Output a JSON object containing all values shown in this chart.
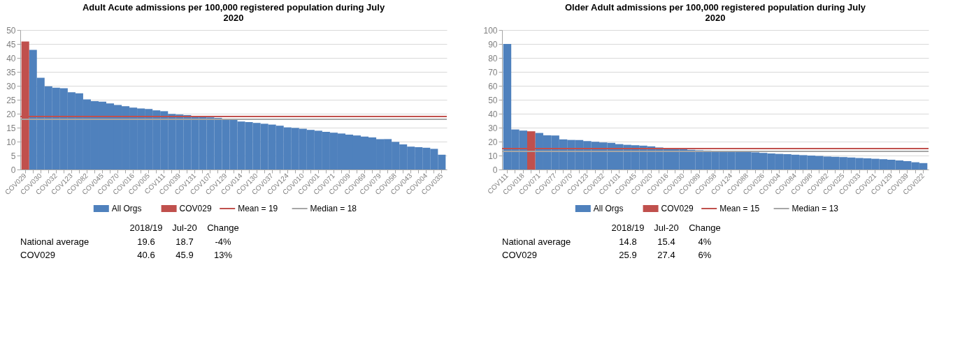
{
  "chart_data": [
    {
      "type": "bar",
      "title": "Adult Acute admissions per 100,000 registered population during July 2020",
      "categories": [
        "COV029",
        null,
        "COV030",
        null,
        "COV032",
        null,
        "COV123",
        null,
        "COV082",
        null,
        "COV045",
        null,
        "COV070",
        null,
        "COV016",
        null,
        "COV005",
        null,
        "COV111",
        null,
        "COV039",
        null,
        "COV131",
        null,
        "COV107",
        null,
        "COV129",
        null,
        "COV014",
        null,
        "COV130",
        null,
        "COV037",
        null,
        "COV124",
        null,
        "COV010",
        null,
        "COV001",
        null,
        "COV071",
        null,
        "COV009",
        null,
        "COV069",
        null,
        "COV079",
        null,
        "COV058",
        null,
        "COV043",
        null,
        "COV004",
        null,
        "COV035"
      ],
      "series": [
        {
          "name": "All Orgs",
          "color": "#4f81bd",
          "values": [
            null,
            42.9,
            32.9,
            29.8,
            29.3,
            29.1,
            27.7,
            27.3,
            25.1,
            24.5,
            24.3,
            23.7,
            23.1,
            22.7,
            22.2,
            21.9,
            21.7,
            21.2,
            20.9,
            19.9,
            19.7,
            19.5,
            19.2,
            18.9,
            18.7,
            18.5,
            18.2,
            17.8,
            17.2,
            17.0,
            16.7,
            16.4,
            16.1,
            15.7,
            15.1,
            14.9,
            14.6,
            14.2,
            13.9,
            13.5,
            13.2,
            12.9,
            12.5,
            12.2,
            11.8,
            11.5,
            10.9,
            10.9,
            9.9,
            9.0,
            8.2,
            8.0,
            7.8,
            7.4,
            5.3
          ]
        },
        {
          "name": "COV029",
          "color": "#c0504d",
          "values": [
            45.9,
            null,
            null,
            null,
            null,
            null,
            null,
            null,
            null,
            null,
            null,
            null,
            null,
            null,
            null,
            null,
            null,
            null,
            null,
            null,
            null,
            null,
            null,
            null,
            null,
            null,
            null,
            null,
            null,
            null,
            null,
            null,
            null,
            null,
            null,
            null,
            null,
            null,
            null,
            null,
            null,
            null,
            null,
            null,
            null,
            null,
            null,
            null,
            null,
            null,
            null,
            null,
            null,
            null,
            null
          ]
        }
      ],
      "ylim": [
        0,
        50
      ],
      "yticks": [
        0,
        5,
        10,
        15,
        20,
        25,
        30,
        35,
        40,
        45,
        50
      ],
      "grid": "y",
      "legend": "bottom",
      "ref_lines": [
        {
          "axis": "y",
          "value": 19,
          "label": "Mean = 19",
          "color": "#c0504d"
        },
        {
          "axis": "y",
          "value": 18,
          "label": "Median = 18",
          "color": "#a6a6a6"
        }
      ],
      "annotations": [
        "2018/19",
        "Jul-20",
        "Change",
        "National average",
        "19.6",
        "18.7",
        "-4%",
        "COV029",
        "40.6",
        "45.9",
        "13%"
      ]
    },
    {
      "type": "bar",
      "title": "Older Adult admissions per 100,000 registered population during July 2020",
      "categories": [
        "COV111",
        null,
        "COV018",
        null,
        "COV071",
        null,
        "COV077",
        null,
        "COV070",
        null,
        "COV123",
        null,
        "COV032",
        null,
        "COV101",
        null,
        "COV045",
        null,
        "COV020",
        null,
        "COV016",
        null,
        "COV030",
        null,
        "COV089",
        null,
        "COV058",
        null,
        "COV124",
        null,
        "COV088",
        null,
        "COV026",
        null,
        "COV004",
        null,
        "COV084",
        null,
        "COV098",
        null,
        "COV082",
        null,
        "COV025",
        null,
        "COV033",
        null,
        "COV021",
        null,
        "COV129",
        null,
        "COV039",
        null,
        "COV022"
      ],
      "series": [
        {
          "name": "All Orgs",
          "color": "#4f81bd",
          "values": [
            90,
            28.7,
            27.9,
            null,
            26.2,
            24.5,
            24.4,
            21.6,
            21.2,
            21.1,
            20.4,
            19.9,
            19.4,
            19.1,
            18.2,
            17.7,
            17.4,
            17.1,
            16.6,
            15.8,
            15.4,
            15.3,
            14.9,
            14.1,
            13.8,
            13.6,
            13.4,
            13.2,
            13.0,
            12.9,
            12.8,
            12.3,
            11.9,
            11.5,
            11.2,
            11.0,
            10.6,
            10.3,
            10.0,
            9.7,
            9.3,
            9.1,
            8.9,
            8.6,
            8.3,
            8.0,
            7.7,
            7.4,
            7.0,
            6.5,
            6.0,
            5.2,
            4.6
          ]
        },
        {
          "name": "COV029",
          "color": "#c0504d",
          "values": [
            null,
            null,
            null,
            27.4,
            null,
            null,
            null,
            null,
            null,
            null,
            null,
            null,
            null,
            null,
            null,
            null,
            null,
            null,
            null,
            null,
            null,
            null,
            null,
            null,
            null,
            null,
            null,
            null,
            null,
            null,
            null,
            null,
            null,
            null,
            null,
            null,
            null,
            null,
            null,
            null,
            null,
            null,
            null,
            null,
            null,
            null,
            null,
            null,
            null,
            null,
            null,
            null,
            null
          ]
        }
      ],
      "ylim": [
        0,
        100
      ],
      "yticks": [
        0,
        10,
        20,
        30,
        40,
        50,
        60,
        70,
        80,
        90,
        100
      ],
      "grid": "y",
      "legend": "bottom",
      "ref_lines": [
        {
          "axis": "y",
          "value": 15,
          "label": "Mean = 15",
          "color": "#c0504d"
        },
        {
          "axis": "y",
          "value": 13,
          "label": "Median = 13",
          "color": "#a6a6a6"
        }
      ],
      "annotations": [
        "2018/19",
        "Jul-20",
        "Change",
        "National average",
        "14.8",
        "15.4",
        "4%",
        "COV029",
        "25.9",
        "27.4",
        "6%"
      ]
    }
  ]
}
